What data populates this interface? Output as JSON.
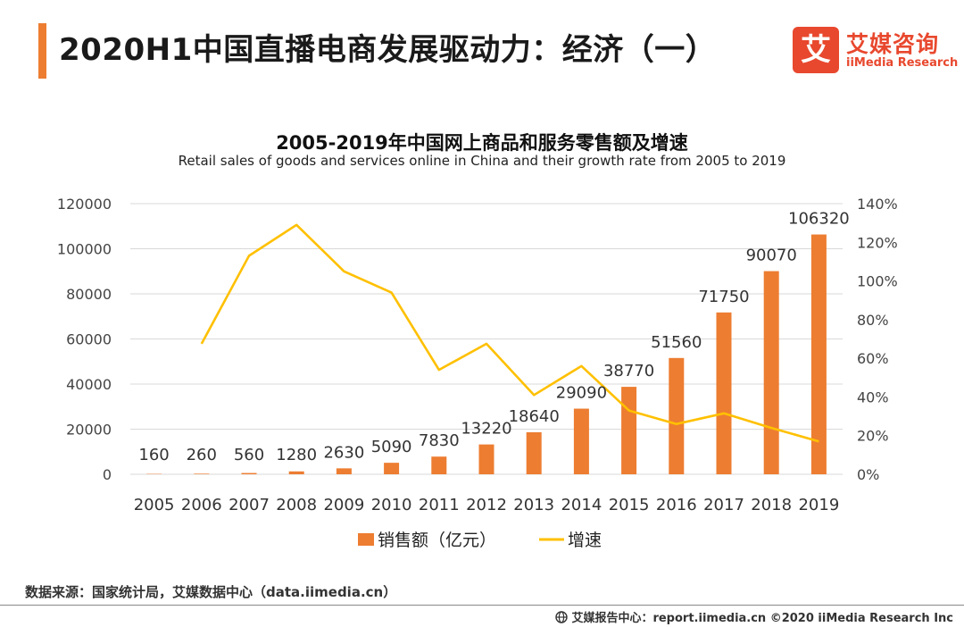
{
  "page": {
    "title": "2020H1中国直播电商发展驱动力：经济（一）"
  },
  "logo": {
    "mark": "艾",
    "name_cn": "艾媒咨询",
    "name_en": "iiMedia Research",
    "color": "#E8482E"
  },
  "colors": {
    "accent": "#ED7D31",
    "bar": "#ED7D31",
    "line": "#FFC000"
  },
  "chart_data": {
    "type": "bar",
    "title": "2005-2019年中国网上商品和服务零售额及增速",
    "subtitle": "Retail sales of goods and services online in China and their growth rate from 2005 to 2019",
    "categories": [
      "2005",
      "2006",
      "2007",
      "2008",
      "2009",
      "2010",
      "2011",
      "2012",
      "2013",
      "2014",
      "2015",
      "2016",
      "2017",
      "2018",
      "2019"
    ],
    "series": [
      {
        "name": "销售额（亿元）",
        "type": "bar",
        "axis": "left",
        "values": [
          160,
          260,
          560,
          1280,
          2630,
          5090,
          7830,
          13220,
          18640,
          29090,
          38770,
          51560,
          71750,
          90070,
          106320
        ],
        "labels": [
          "160",
          "260",
          "560",
          "1280",
          "2630",
          "5090",
          "7830",
          "13220",
          "18640",
          "29090",
          "38770",
          "51560",
          "71750",
          "90070",
          "106320"
        ]
      },
      {
        "name": "增速",
        "type": "line",
        "axis": "right",
        "values": [
          null,
          0.675,
          1.13,
          1.29,
          1.05,
          0.94,
          0.54,
          0.675,
          0.41,
          0.56,
          0.33,
          0.26,
          0.315,
          0.24,
          0.17
        ]
      }
    ],
    "y_left": {
      "min": 0,
      "max": 120000,
      "ticks": [
        "0",
        "20000",
        "40000",
        "60000",
        "80000",
        "100000",
        "120000"
      ]
    },
    "y_right": {
      "min": 0,
      "max": 1.4,
      "ticks": [
        "0%",
        "20%",
        "40%",
        "60%",
        "80%",
        "100%",
        "120%",
        "140%"
      ]
    },
    "grid": true,
    "legend": "bottom"
  },
  "source": "数据来源：国家统计局，艾媒数据中心（data.iimedia.cn）",
  "footer": {
    "text": "艾媒报告中心：report.iimedia.cn  ©2020  iiMedia Research  Inc",
    "icon": "globe-icon"
  }
}
